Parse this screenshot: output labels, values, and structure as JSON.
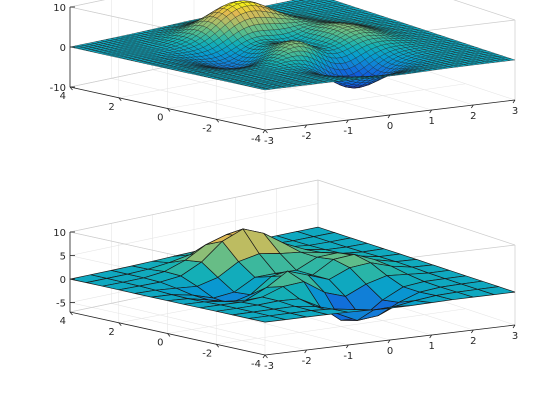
{
  "chart_data": [
    {
      "type": "surface",
      "function": "peaks",
      "grid_points": 49,
      "shading": "faceted-dense",
      "colormap": "parula",
      "x_range": [
        -3,
        3
      ],
      "y_range": [
        -4,
        4
      ],
      "zlim": [
        -10,
        10
      ],
      "x_ticks": [
        "-3",
        "-2",
        "-1",
        "0",
        "1",
        "2",
        "3"
      ],
      "y_ticks": [
        "-4",
        "-2",
        "0",
        "2",
        "4"
      ],
      "z_ticks": [
        "-10",
        "0",
        "10"
      ],
      "grid": true,
      "box": true
    },
    {
      "type": "surface",
      "function": "peaks",
      "grid_points": 13,
      "shading": "faceted",
      "colormap": "parula",
      "x_range": [
        -3,
        3
      ],
      "y_range": [
        -4,
        4
      ],
      "zlim": [
        -7,
        10
      ],
      "x_ticks": [
        "-3",
        "-2",
        "-1",
        "0",
        "1",
        "2",
        "3"
      ],
      "y_ticks": [
        "-4",
        "-2",
        "0",
        "2",
        "4"
      ],
      "z_ticks": [
        "-5",
        "0",
        "5",
        "10"
      ],
      "grid": true,
      "box": true
    }
  ]
}
